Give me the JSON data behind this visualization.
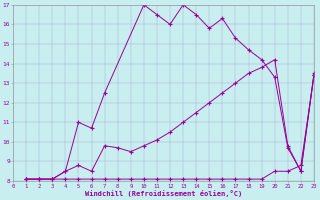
{
  "xlabel": "Windchill (Refroidissement éolien,°C)",
  "bg_color": "#c8eef0",
  "line_color": "#990099",
  "xlim_min": 0,
  "xlim_max": 23,
  "ylim_min": 8,
  "ylim_max": 17,
  "yticks": [
    8,
    9,
    10,
    11,
    12,
    13,
    14,
    15,
    16,
    17
  ],
  "xticks": [
    0,
    1,
    2,
    3,
    4,
    5,
    6,
    7,
    8,
    9,
    10,
    11,
    12,
    13,
    14,
    15,
    16,
    17,
    18,
    19,
    20,
    21,
    22,
    23
  ],
  "line1_x": [
    1,
    2,
    3,
    4,
    5,
    6,
    7,
    10,
    11,
    12,
    13,
    14,
    15,
    16,
    17,
    18,
    19,
    20,
    21,
    22,
    23
  ],
  "line1_y": [
    8.1,
    8.1,
    8.1,
    8.5,
    11.0,
    10.7,
    12.5,
    17.0,
    16.5,
    16.0,
    17.0,
    16.5,
    15.8,
    16.3,
    15.3,
    14.7,
    14.2,
    13.3,
    9.7,
    8.5,
    13.4
  ],
  "line2_x": [
    1,
    2,
    3,
    4,
    5,
    6,
    7,
    8,
    9,
    10,
    11,
    12,
    13,
    14,
    15,
    16,
    17,
    18,
    19,
    20,
    21,
    22,
    23
  ],
  "line2_y": [
    8.1,
    8.1,
    8.1,
    8.5,
    8.8,
    8.5,
    9.8,
    9.7,
    9.5,
    9.8,
    10.1,
    10.5,
    11.0,
    11.5,
    12.0,
    12.5,
    13.0,
    13.5,
    13.8,
    14.2,
    9.8,
    8.5,
    13.5
  ],
  "line3_x": [
    1,
    2,
    3,
    4,
    5,
    6,
    7,
    8,
    9,
    10,
    11,
    12,
    13,
    14,
    15,
    16,
    17,
    18,
    19,
    20,
    21,
    22,
    23
  ],
  "line3_y": [
    8.1,
    8.1,
    8.1,
    8.1,
    8.1,
    8.1,
    8.1,
    8.1,
    8.1,
    8.1,
    8.1,
    8.1,
    8.1,
    8.1,
    8.1,
    8.1,
    8.1,
    8.1,
    8.1,
    8.5,
    8.5,
    8.8,
    13.4
  ]
}
